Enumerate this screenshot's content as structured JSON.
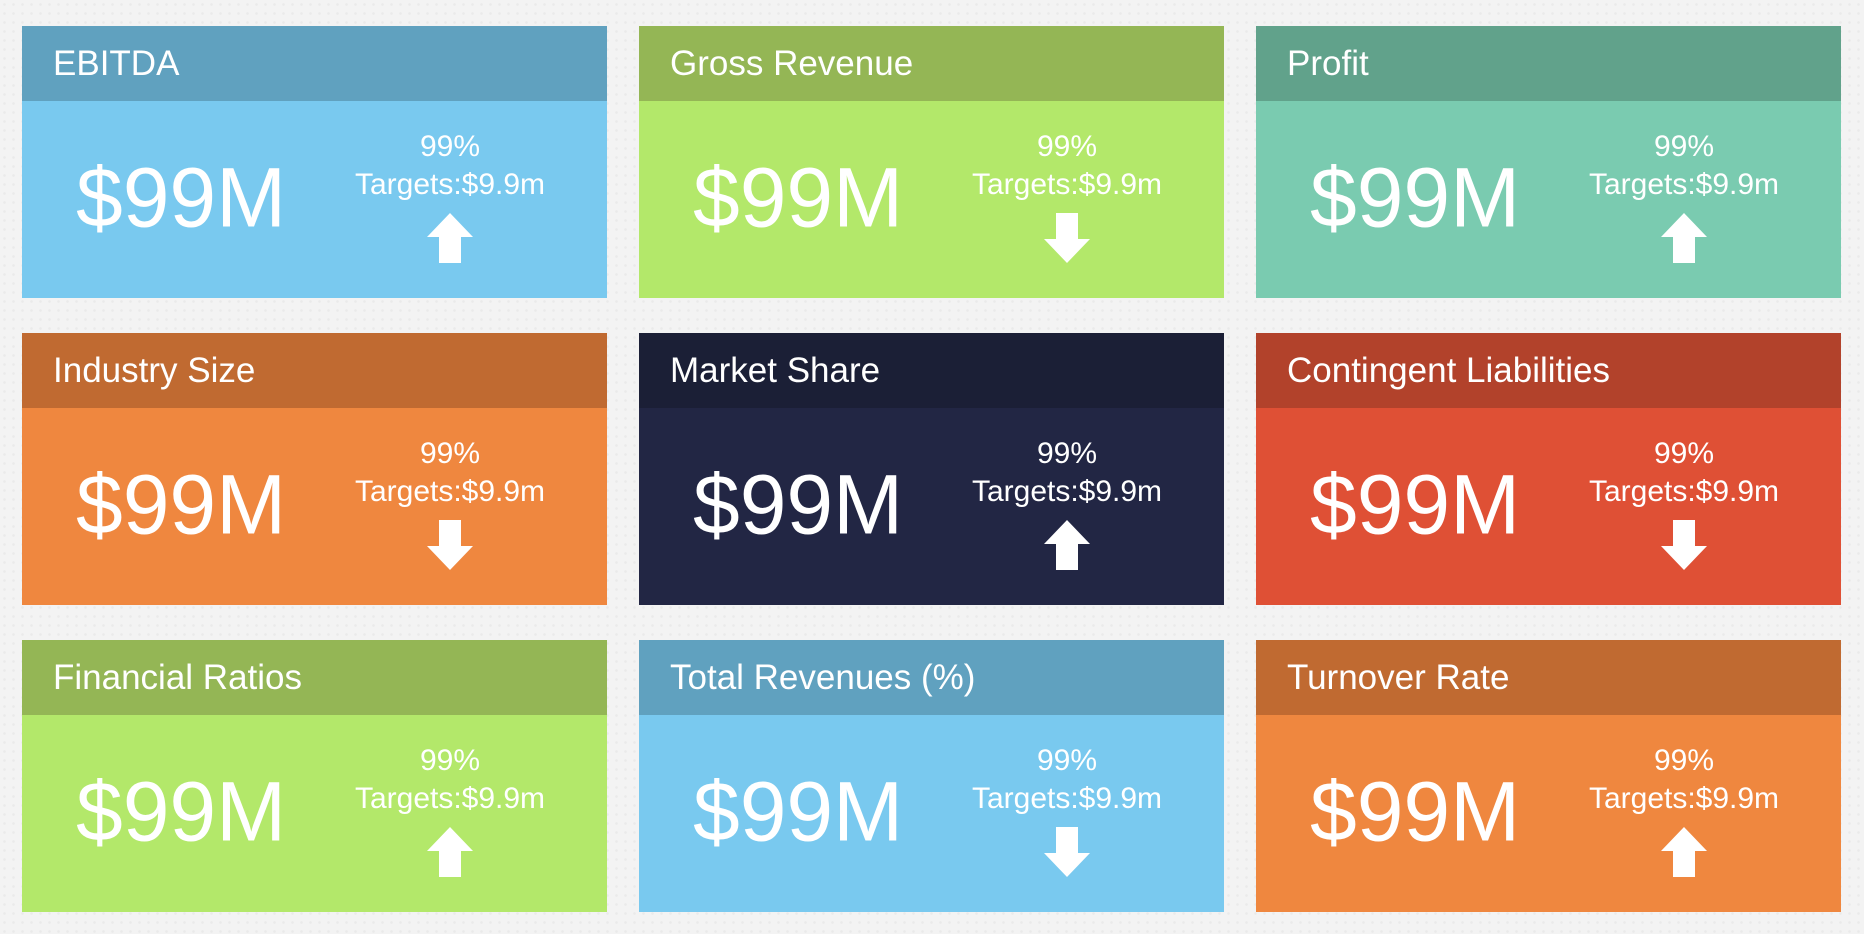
{
  "dashboard": {
    "cards": [
      {
        "title": "EBITDA",
        "value": "$99M",
        "percent": "99%",
        "target": "Targets:$9.9m",
        "trend": "up",
        "header_color": "#60a1bf",
        "body_color": "#79c9ef"
      },
      {
        "title": "Gross Revenue",
        "value": "$99M",
        "percent": "99%",
        "target": "Targets:$9.9m",
        "trend": "down",
        "header_color": "#94b655",
        "body_color": "#b3e86a"
      },
      {
        "title": "Profit",
        "value": "$99M",
        "percent": "99%",
        "target": "Targets:$9.9m",
        "trend": "up",
        "header_color": "#61a28b",
        "body_color": "#7acbb0"
      },
      {
        "title": "Industry Size",
        "value": "$99M",
        "percent": "99%",
        "target": "Targets:$9.9m",
        "trend": "down",
        "header_color": "#c06a31",
        "body_color": "#ef873f"
      },
      {
        "title": "Market Share",
        "value": "$99M",
        "percent": "99%",
        "target": "Targets:$9.9m",
        "trend": "up",
        "header_color": "#1b1f36",
        "body_color": "#222644"
      },
      {
        "title": "Contingent Liabilities",
        "value": "$99M",
        "percent": "99%",
        "target": "Targets:$9.9m",
        "trend": "down",
        "header_color": "#b2422b",
        "body_color": "#df5035"
      },
      {
        "title": "Financial Ratios",
        "value": "$99M",
        "percent": "99%",
        "target": "Targets:$9.9m",
        "trend": "up",
        "header_color": "#94b655",
        "body_color": "#b3e86a"
      },
      {
        "title": "Total Revenues (%)",
        "value": "$99M",
        "percent": "99%",
        "target": "Targets:$9.9m",
        "trend": "down",
        "header_color": "#60a1bf",
        "body_color": "#79c9ef"
      },
      {
        "title": "Turnover Rate",
        "value": "$99M",
        "percent": "99%",
        "target": "Targets:$9.9m",
        "trend": "up",
        "header_color": "#c06a31",
        "body_color": "#ef873f"
      }
    ]
  },
  "icons": {
    "up": "arrow-up-icon",
    "down": "arrow-down-icon"
  }
}
